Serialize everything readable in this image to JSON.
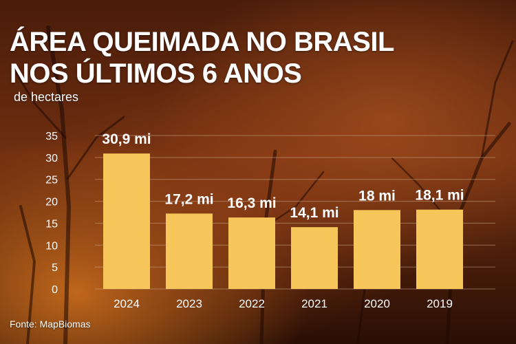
{
  "header": {
    "title_line1": "ÁREA QUEIMADA NO BRASIL",
    "title_line2": "NOS ÚLTIMOS 6 ANOS",
    "unit": "de hectares"
  },
  "footer": {
    "source": "Fonte: MapBiomas"
  },
  "colors": {
    "bar": "#f7c65a",
    "text": "#ffffff",
    "grid": "#cfa98a"
  },
  "chart_data": {
    "type": "bar",
    "title": "ÁREA QUEIMADA NO BRASIL NOS ÚLTIMOS 6 ANOS",
    "ylabel": "de hectares",
    "categories": [
      "2024",
      "2023",
      "2022",
      "2021",
      "2020",
      "2019"
    ],
    "values": [
      30.9,
      17.2,
      16.3,
      14.1,
      18,
      18.1
    ],
    "data_labels": [
      "30,9 mi",
      "17,2 mi",
      "16,3 mi",
      "14,1 mi",
      "18 mi",
      "18,1 mi"
    ],
    "yticks": [
      0,
      5,
      10,
      15,
      20,
      25,
      30,
      35
    ],
    "ylim": [
      0,
      35
    ],
    "grid": true,
    "legend": "none"
  }
}
